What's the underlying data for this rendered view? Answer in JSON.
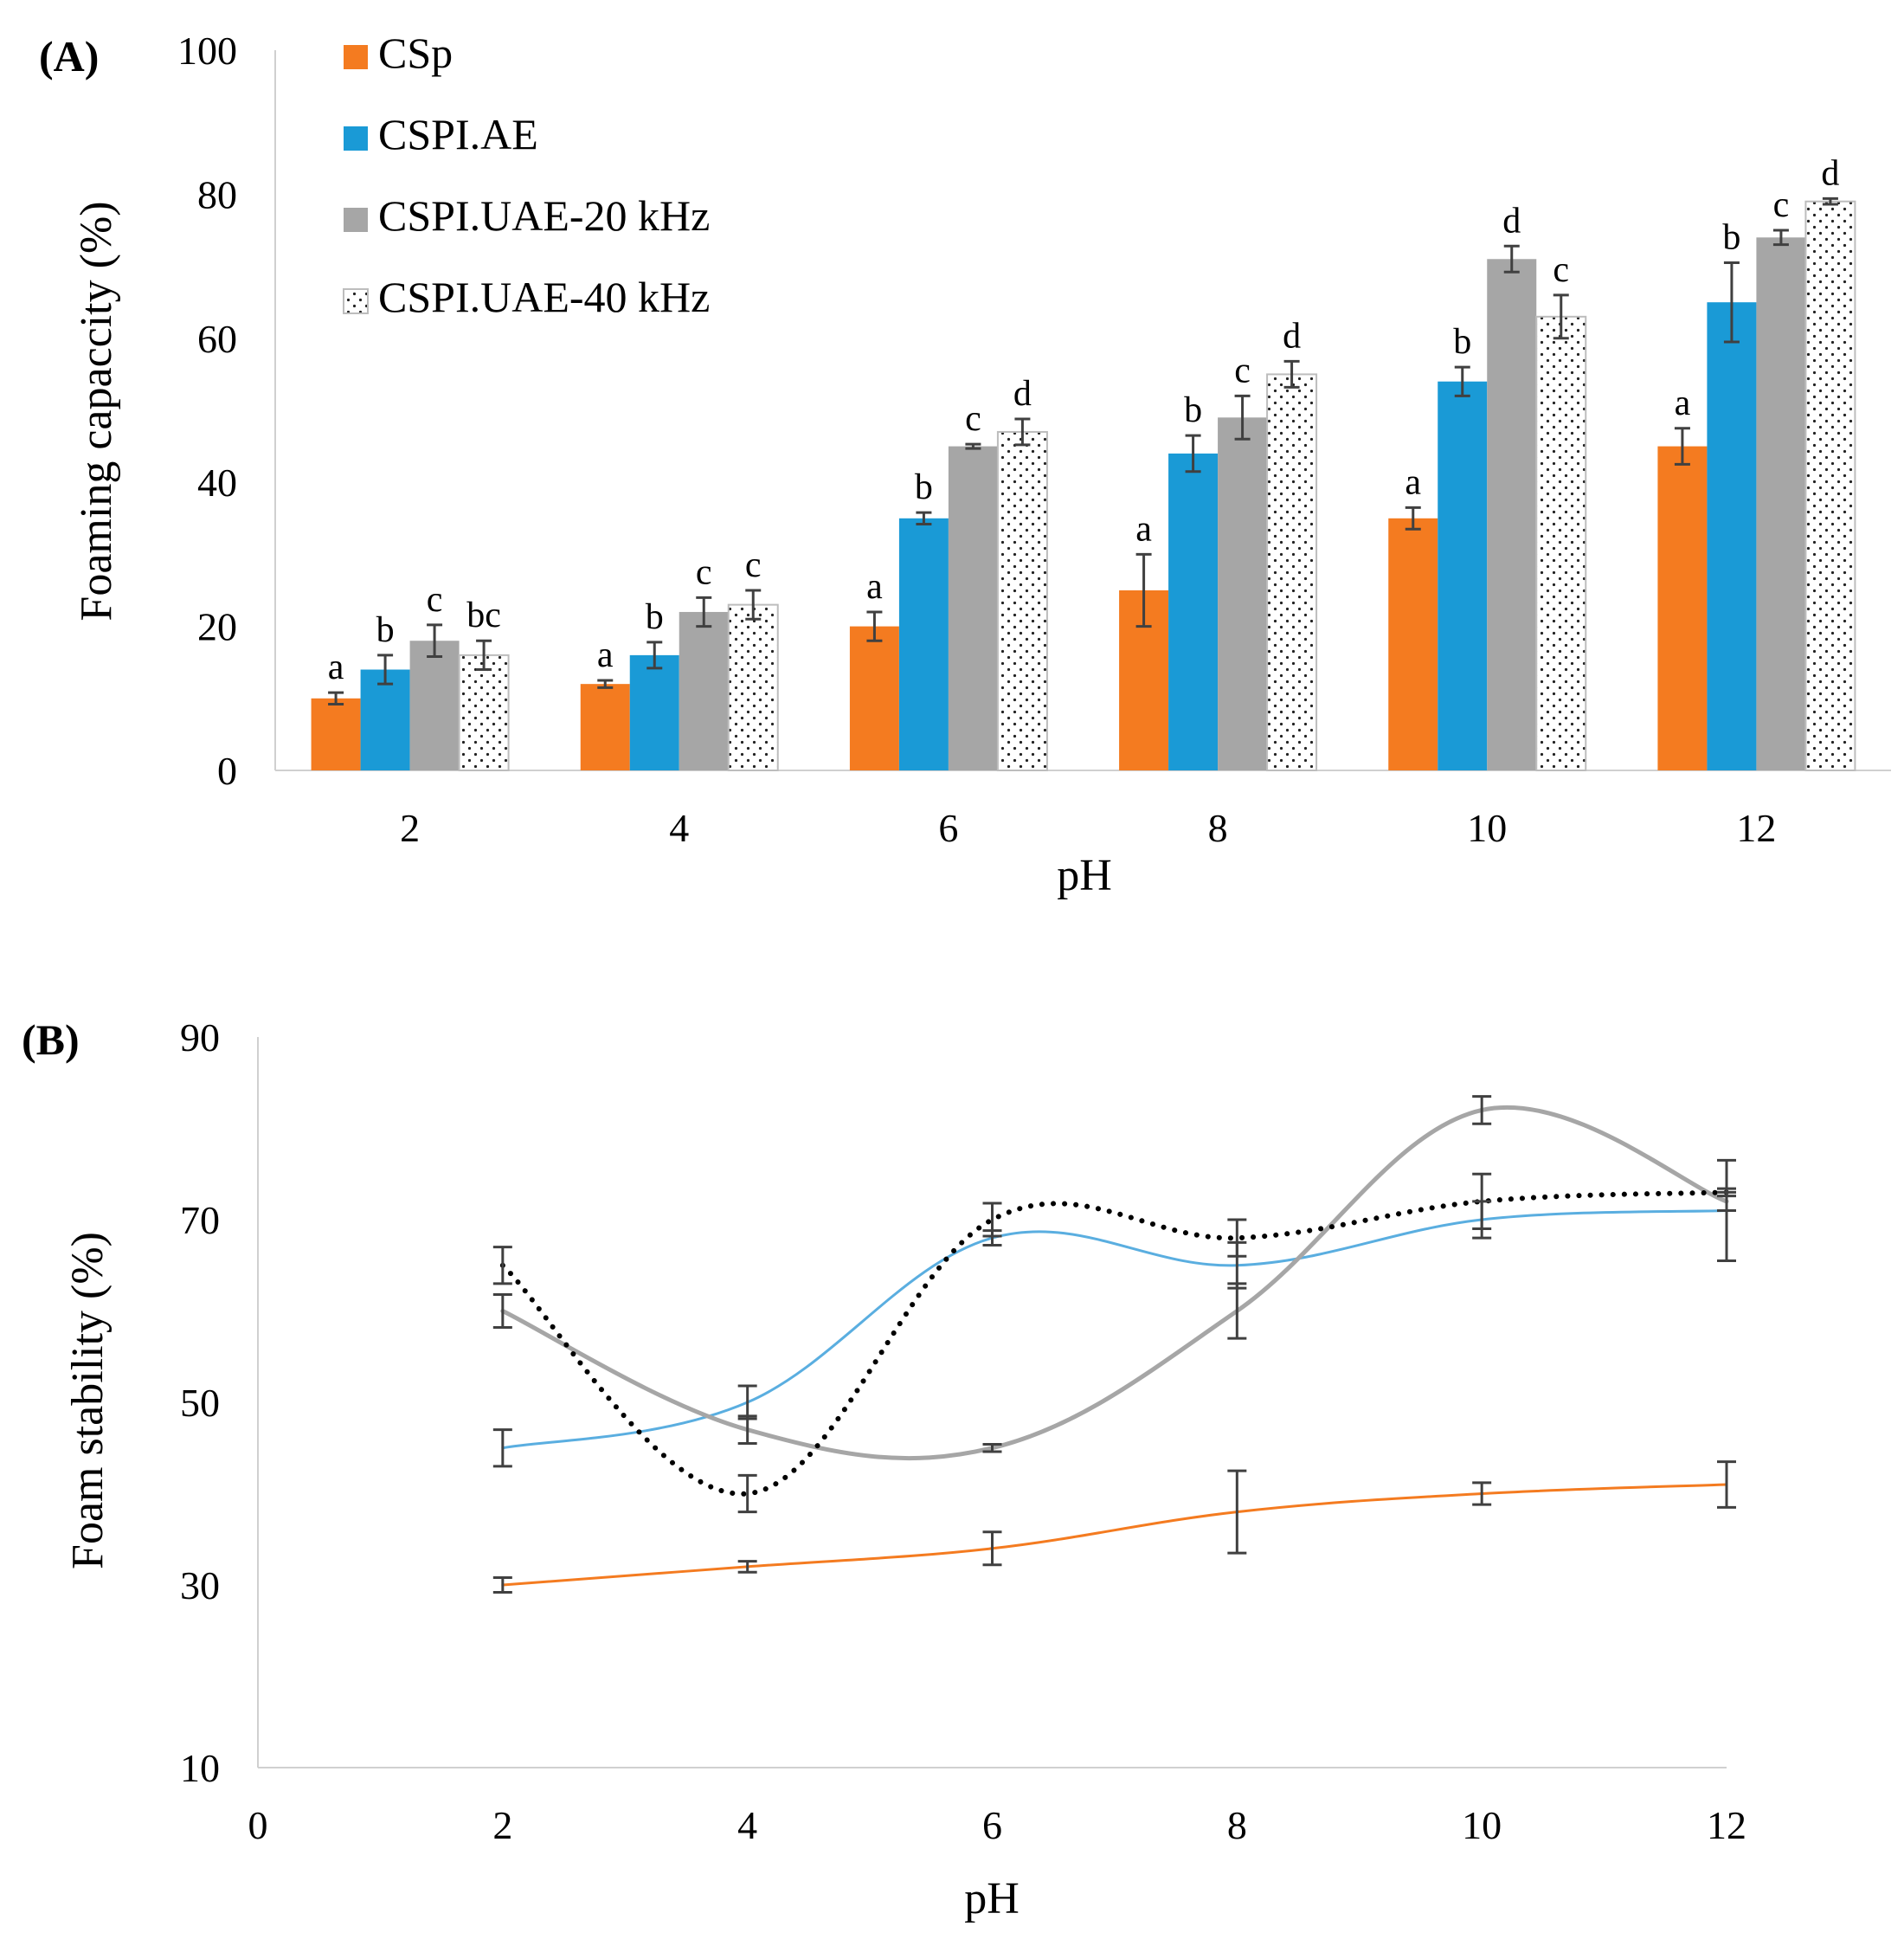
{
  "chart_data": [
    {
      "panel": "(A)",
      "type": "bar",
      "ylabel": "Foaming capaccity (%)",
      "xlabel": "pH",
      "ylim": [
        0,
        100
      ],
      "yticks": [
        0,
        20,
        40,
        60,
        80,
        100
      ],
      "categories": [
        "2",
        "4",
        "6",
        "8",
        "10",
        "12"
      ],
      "legend_position": "top-left",
      "series": [
        {
          "name": "CSp",
          "color": "#f47b20",
          "pattern": "solid",
          "values": [
            10,
            12,
            20,
            25,
            35,
            45
          ],
          "errors": [
            0.8,
            0.5,
            2,
            5,
            1.5,
            2.5
          ],
          "letters": [
            "a",
            "a",
            "a",
            "a",
            "a",
            "a"
          ]
        },
        {
          "name": "CSPI.AE",
          "color": "#1a9ad6",
          "pattern": "solid",
          "values": [
            14,
            16,
            35,
            44,
            54,
            65
          ],
          "errors": [
            2,
            1.8,
            0.8,
            2.5,
            2,
            5.5
          ],
          "letters": [
            "b",
            "b",
            "b",
            "b",
            "b",
            "b"
          ]
        },
        {
          "name": "CSPI.UAE-20 kHz",
          "color": "#a6a6a6",
          "pattern": "solid",
          "values": [
            18,
            22,
            45,
            49,
            71,
            74
          ],
          "errors": [
            2.2,
            2,
            0.3,
            3,
            1.8,
            1
          ],
          "letters": [
            "c",
            "c",
            "c",
            "c",
            "d",
            "c"
          ]
        },
        {
          "name": "CSPI.UAE-40 kHz",
          "color": "#ffffff",
          "pattern": "dotted",
          "values": [
            16,
            23,
            47,
            55,
            63,
            79
          ],
          "errors": [
            2,
            2,
            1.8,
            1.8,
            3,
            0.4
          ],
          "letters": [
            "bc",
            "c",
            "d",
            "d",
            "c",
            "d"
          ]
        }
      ]
    },
    {
      "panel": "(B)",
      "type": "line",
      "ylabel": "Foam stability (%)",
      "xlabel": "pH",
      "xlim": [
        0,
        12
      ],
      "xticks": [
        0,
        2,
        4,
        6,
        8,
        10,
        12
      ],
      "ylim": [
        10,
        90
      ],
      "yticks": [
        10,
        30,
        50,
        70,
        90
      ],
      "x": [
        2,
        4,
        6,
        8,
        10,
        12
      ],
      "series": [
        {
          "name": "CSp",
          "color": "#f47b20",
          "style": "solid",
          "width": 3,
          "values": [
            30,
            32,
            34,
            38,
            40,
            41
          ],
          "errors": [
            0.8,
            0.6,
            1.8,
            4.5,
            1.2,
            2.5
          ]
        },
        {
          "name": "CSPI.AE",
          "color": "#5aaee0",
          "style": "solid",
          "width": 3,
          "values": [
            45,
            50,
            68,
            65,
            70,
            71
          ],
          "errors": [
            2,
            1.8,
            0.8,
            2.5,
            2,
            5.5
          ]
        },
        {
          "name": "CSPI.UAE-20 kHz",
          "color": "#a6a6a6",
          "style": "solid",
          "width": 5,
          "values": [
            60,
            47,
            45,
            60,
            82,
            72
          ],
          "errors": [
            1.8,
            1.5,
            0.4,
            3,
            1.5,
            1
          ]
        },
        {
          "name": "CSPI.UAE-40 kHz",
          "color": "#000000",
          "style": "dotted",
          "width": 6,
          "values": [
            65,
            40,
            70,
            68,
            72,
            73
          ],
          "errors": [
            2,
            2,
            1.8,
            2,
            3,
            0.4
          ]
        }
      ]
    }
  ]
}
